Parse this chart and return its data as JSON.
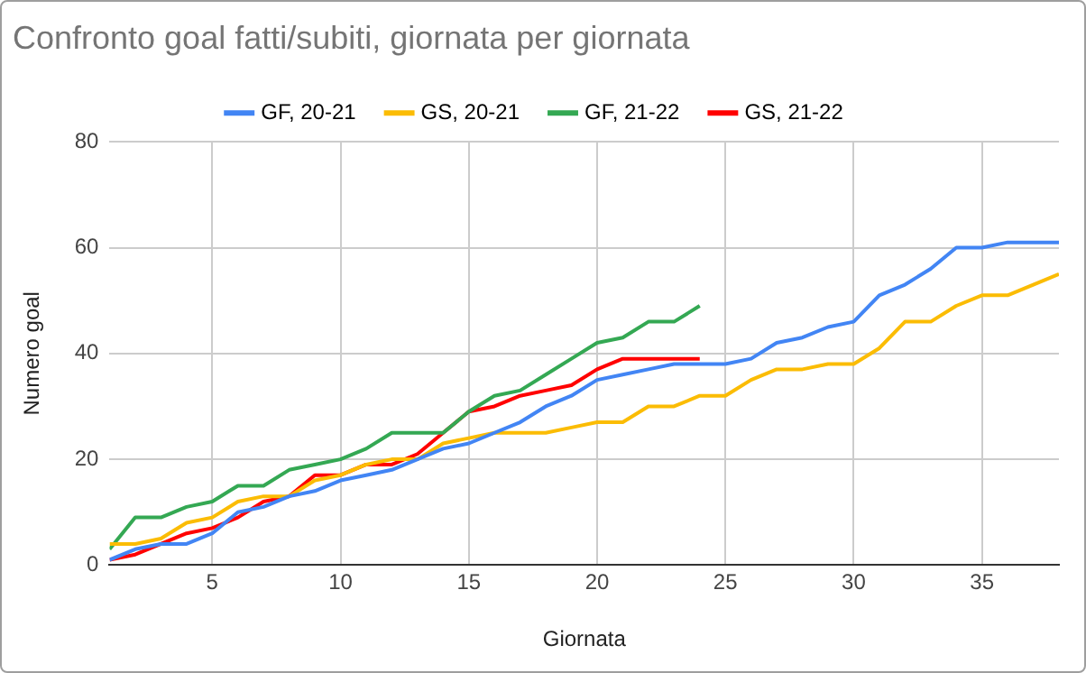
{
  "chart_data": {
    "type": "line",
    "title": "Confronto goal fatti/subiti, giornata per giornata",
    "xlabel": "Giornata",
    "ylabel": "Numero goal",
    "x": [
      1,
      2,
      3,
      4,
      5,
      6,
      7,
      8,
      9,
      10,
      11,
      12,
      13,
      14,
      15,
      16,
      17,
      18,
      19,
      20,
      21,
      22,
      23,
      24,
      25,
      26,
      27,
      28,
      29,
      30,
      31,
      32,
      33,
      34,
      35,
      36,
      37,
      38
    ],
    "series": [
      {
        "name": "GF, 20-21",
        "color": "#4285f4",
        "values": [
          1,
          3,
          4,
          4,
          6,
          10,
          11,
          13,
          14,
          16,
          17,
          18,
          20,
          22,
          23,
          25,
          27,
          30,
          32,
          35,
          36,
          37,
          38,
          38,
          38,
          39,
          42,
          43,
          45,
          46,
          51,
          53,
          56,
          60,
          60,
          61,
          61,
          61
        ]
      },
      {
        "name": "GS, 20-21",
        "color": "#fbbc04",
        "values": [
          4,
          4,
          5,
          8,
          9,
          12,
          13,
          13,
          16,
          17,
          19,
          20,
          20,
          23,
          24,
          25,
          25,
          25,
          26,
          27,
          27,
          30,
          30,
          32,
          32,
          35,
          37,
          37,
          38,
          38,
          41,
          46,
          46,
          49,
          51,
          51,
          53,
          55
        ]
      },
      {
        "name": "GF, 21-22",
        "color": "#34a853",
        "values": [
          3,
          9,
          9,
          11,
          12,
          15,
          15,
          18,
          19,
          20,
          22,
          25,
          25,
          25,
          29,
          32,
          33,
          36,
          39,
          42,
          43,
          46,
          46,
          49,
          null,
          null,
          null,
          null,
          null,
          null,
          null,
          null,
          null,
          null,
          null,
          null,
          null,
          null
        ]
      },
      {
        "name": "GS, 21-22",
        "color": "#ff0000",
        "values": [
          1,
          2,
          4,
          6,
          7,
          9,
          12,
          13,
          17,
          17,
          19,
          19,
          21,
          25,
          29,
          30,
          32,
          33,
          34,
          37,
          39,
          39,
          39,
          39,
          null,
          null,
          null,
          null,
          null,
          null,
          null,
          null,
          null,
          null,
          null,
          null,
          null,
          null
        ]
      }
    ],
    "xlim": [
      1,
      38
    ],
    "xticks": [
      5,
      10,
      15,
      20,
      25,
      30,
      35
    ],
    "ylim": [
      0,
      80
    ],
    "yticks": [
      0,
      20,
      40,
      60,
      80
    ],
    "grid": true,
    "legend": "top",
    "marker": "none",
    "line_style": "solid"
  }
}
